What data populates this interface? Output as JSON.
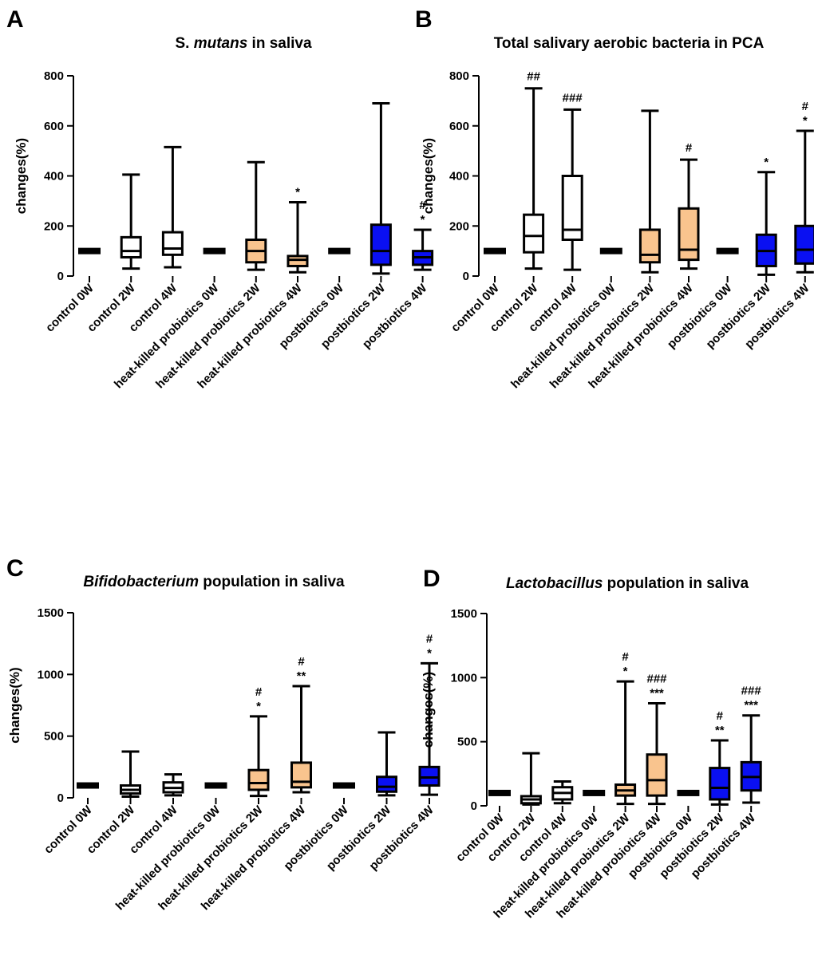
{
  "colors": {
    "control": "#ffffff",
    "heat_killed": "#f9c48e",
    "postbiotics": "#0a10f2",
    "line": "#000000"
  },
  "categories": [
    "control 0W",
    "control 2W",
    "control 4W",
    "heat-killed probiotics 0W",
    "heat-killed probiotics 2W",
    "heat-killed probiotics 4W",
    "postbiotics 0W",
    "postbiotics 2W",
    "postbiotics 4W"
  ],
  "chart_data": [
    {
      "panel": "A",
      "type": "box",
      "title_parts": [
        {
          "text": "S. ",
          "italic": false
        },
        {
          "text": "mutans",
          "italic": true
        },
        {
          "text": " in saliva",
          "italic": false
        }
      ],
      "ylabel": "changes(%)",
      "ylim": [
        0,
        800
      ],
      "yticks": [
        "0",
        "200",
        "400",
        "600",
        "800"
      ],
      "ytick_values": [
        0,
        200,
        400,
        600,
        800
      ],
      "boxes": [
        {
          "min": 100,
          "q1": 100,
          "median": 100,
          "q3": 100,
          "max": 100,
          "group": "control"
        },
        {
          "min": 30,
          "q1": 75,
          "median": 100,
          "q3": 155,
          "max": 405,
          "group": "control"
        },
        {
          "min": 35,
          "q1": 85,
          "median": 110,
          "q3": 175,
          "max": 515,
          "group": "control"
        },
        {
          "min": 100,
          "q1": 100,
          "median": 100,
          "q3": 100,
          "max": 100,
          "group": "heat_killed"
        },
        {
          "min": 25,
          "q1": 55,
          "median": 100,
          "q3": 145,
          "max": 455,
          "group": "heat_killed"
        },
        {
          "min": 15,
          "q1": 40,
          "median": 65,
          "q3": 80,
          "max": 295,
          "group": "heat_killed"
        },
        {
          "min": 100,
          "q1": 100,
          "median": 100,
          "q3": 100,
          "max": 100,
          "group": "postbiotics"
        },
        {
          "min": 10,
          "q1": 45,
          "median": 100,
          "q3": 205,
          "max": 690,
          "group": "postbiotics"
        },
        {
          "min": 25,
          "q1": 45,
          "median": 75,
          "q3": 100,
          "max": 185,
          "group": "postbiotics"
        }
      ],
      "annotations": [
        [
          "",
          ""
        ],
        [
          "",
          ""
        ],
        [
          "",
          ""
        ],
        [
          "",
          ""
        ],
        [
          "",
          ""
        ],
        [
          "",
          "*"
        ],
        [
          "",
          ""
        ],
        [
          "",
          ""
        ],
        [
          "#",
          "*"
        ]
      ]
    },
    {
      "panel": "B",
      "type": "box",
      "title_parts": [
        {
          "text": "Total  salivary aerobic bacteria  in PCA",
          "italic": false
        }
      ],
      "ylabel": "changes(%)",
      "ylim": [
        0,
        800
      ],
      "yticks": [
        "0",
        "200",
        "400",
        "600",
        "800"
      ],
      "ytick_values": [
        0,
        200,
        400,
        600,
        800
      ],
      "boxes": [
        {
          "min": 100,
          "q1": 100,
          "median": 100,
          "q3": 100,
          "max": 100,
          "group": "control"
        },
        {
          "min": 30,
          "q1": 95,
          "median": 160,
          "q3": 245,
          "max": 750,
          "group": "control"
        },
        {
          "min": 25,
          "q1": 145,
          "median": 185,
          "q3": 400,
          "max": 665,
          "group": "control"
        },
        {
          "min": 100,
          "q1": 100,
          "median": 100,
          "q3": 100,
          "max": 100,
          "group": "heat_killed"
        },
        {
          "min": 15,
          "q1": 55,
          "median": 85,
          "q3": 185,
          "max": 660,
          "group": "heat_killed"
        },
        {
          "min": 30,
          "q1": 65,
          "median": 105,
          "q3": 270,
          "max": 465,
          "group": "heat_killed"
        },
        {
          "min": 100,
          "q1": 100,
          "median": 100,
          "q3": 100,
          "max": 100,
          "group": "postbiotics"
        },
        {
          "min": 5,
          "q1": 40,
          "median": 100,
          "q3": 165,
          "max": 415,
          "group": "postbiotics"
        },
        {
          "min": 15,
          "q1": 50,
          "median": 105,
          "q3": 200,
          "max": 580,
          "group": "postbiotics"
        }
      ],
      "annotations": [
        [
          "",
          ""
        ],
        [
          "##",
          ""
        ],
        [
          "###",
          ""
        ],
        [
          "",
          ""
        ],
        [
          "",
          ""
        ],
        [
          "#",
          ""
        ],
        [
          "",
          ""
        ],
        [
          "",
          "*"
        ],
        [
          "#",
          "*"
        ]
      ]
    },
    {
      "panel": "C",
      "type": "box",
      "title_parts": [
        {
          "text": "Bifidobacterium",
          "italic": true
        },
        {
          "text": " population in saliva",
          "italic": false
        }
      ],
      "ylabel": "changes(%)",
      "ylim": [
        0,
        1500
      ],
      "yticks": [
        "0",
        "500",
        "1000",
        "1500"
      ],
      "ytick_values": [
        0,
        500,
        1000,
        1500
      ],
      "boxes": [
        {
          "min": 100,
          "q1": 100,
          "median": 100,
          "q3": 100,
          "max": 100,
          "group": "control"
        },
        {
          "min": 10,
          "q1": 35,
          "median": 65,
          "q3": 100,
          "max": 375,
          "group": "control"
        },
        {
          "min": 20,
          "q1": 45,
          "median": 80,
          "q3": 125,
          "max": 190,
          "group": "control"
        },
        {
          "min": 100,
          "q1": 100,
          "median": 100,
          "q3": 100,
          "max": 100,
          "group": "heat_killed"
        },
        {
          "min": 15,
          "q1": 65,
          "median": 120,
          "q3": 225,
          "max": 660,
          "group": "heat_killed"
        },
        {
          "min": 45,
          "q1": 85,
          "median": 130,
          "q3": 285,
          "max": 905,
          "group": "heat_killed"
        },
        {
          "min": 100,
          "q1": 100,
          "median": 100,
          "q3": 100,
          "max": 100,
          "group": "postbiotics"
        },
        {
          "min": 20,
          "q1": 50,
          "median": 90,
          "q3": 170,
          "max": 530,
          "group": "postbiotics"
        },
        {
          "min": 25,
          "q1": 100,
          "median": 165,
          "q3": 250,
          "max": 1090,
          "group": "postbiotics"
        }
      ],
      "annotations": [
        [
          "",
          ""
        ],
        [
          "",
          ""
        ],
        [
          "",
          ""
        ],
        [
          "",
          ""
        ],
        [
          "#",
          "*"
        ],
        [
          "#",
          "**"
        ],
        [
          "",
          ""
        ],
        [
          "",
          ""
        ],
        [
          "#",
          "*"
        ]
      ]
    },
    {
      "panel": "D",
      "type": "box",
      "title_parts": [
        {
          "text": "Lactobacillus",
          "italic": true
        },
        {
          "text": " population in saliva",
          "italic": false
        }
      ],
      "ylabel": "changes(%)",
      "ylim": [
        0,
        1500
      ],
      "yticks": [
        "0",
        "500",
        "1000",
        "1500"
      ],
      "ytick_values": [
        0,
        500,
        1000,
        1500
      ],
      "boxes": [
        {
          "min": 100,
          "q1": 100,
          "median": 100,
          "q3": 100,
          "max": 100,
          "group": "control"
        },
        {
          "min": 10,
          "q1": 20,
          "median": 50,
          "q3": 75,
          "max": 410,
          "group": "control"
        },
        {
          "min": 20,
          "q1": 50,
          "median": 100,
          "q3": 145,
          "max": 190,
          "group": "control"
        },
        {
          "min": 100,
          "q1": 100,
          "median": 100,
          "q3": 100,
          "max": 100,
          "group": "heat_killed"
        },
        {
          "min": 15,
          "q1": 80,
          "median": 120,
          "q3": 165,
          "max": 970,
          "group": "heat_killed"
        },
        {
          "min": 15,
          "q1": 80,
          "median": 200,
          "q3": 400,
          "max": 800,
          "group": "heat_killed"
        },
        {
          "min": 100,
          "q1": 100,
          "median": 100,
          "q3": 100,
          "max": 100,
          "group": "postbiotics"
        },
        {
          "min": 10,
          "q1": 50,
          "median": 140,
          "q3": 295,
          "max": 510,
          "group": "postbiotics"
        },
        {
          "min": 25,
          "q1": 120,
          "median": 225,
          "q3": 340,
          "max": 705,
          "group": "postbiotics"
        }
      ],
      "annotations": [
        [
          "",
          ""
        ],
        [
          "",
          ""
        ],
        [
          "",
          ""
        ],
        [
          "",
          ""
        ],
        [
          "#",
          "*"
        ],
        [
          "###",
          "***"
        ],
        [
          "",
          ""
        ],
        [
          "#",
          "**"
        ],
        [
          "###",
          "***"
        ]
      ]
    }
  ]
}
